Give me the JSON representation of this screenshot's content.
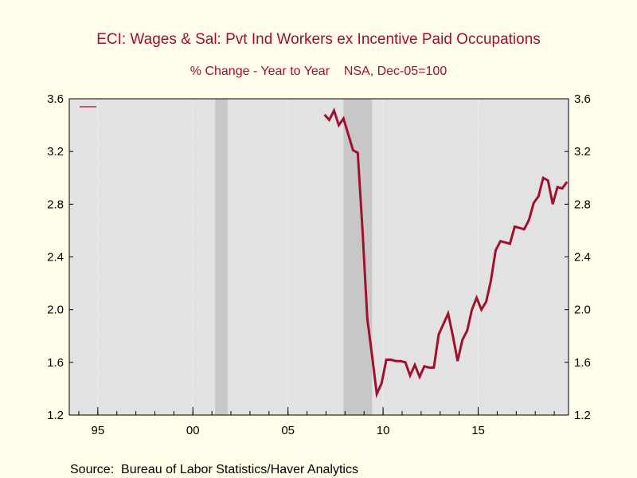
{
  "chart_data": {
    "type": "line",
    "title": "ECI: Wages & Sal: Pvt Ind Workers ex Incentive Paid Occupations",
    "subtitle": "% Change - Year to Year    NSA, Dec-05=100",
    "source": "Source:  Bureau of Labor Statistics/Haver Analytics",
    "xlabel": "",
    "ylabel": "",
    "x_ticks": [
      1995,
      2000,
      2005,
      2010,
      2015
    ],
    "x_tick_labels": [
      "95",
      "00",
      "05",
      "10",
      "15"
    ],
    "xlim": [
      1993.5,
      2019.75
    ],
    "ylim": [
      1.2,
      3.6
    ],
    "y_ticks": [
      1.2,
      1.6,
      2.0,
      2.4,
      2.8,
      3.2,
      3.6
    ],
    "y_tick_labels": [
      "1.2",
      "1.6",
      "2.0",
      "2.4",
      "2.8",
      "3.2",
      "3.6"
    ],
    "grid": "vertical",
    "recessions": [
      [
        2001.17,
        2001.83
      ],
      [
        2007.92,
        2009.42
      ]
    ],
    "colors": {
      "line": "#a0102e",
      "plot_bg": "#e2e2e2",
      "recession": "#c7c7c7",
      "title": "#a0102e",
      "page_bg": "#fffdea"
    },
    "series": [
      {
        "name": "",
        "x": [
          2006.92,
          2007.17,
          2007.42,
          2007.67,
          2007.92,
          2008.17,
          2008.42,
          2008.67,
          2008.92,
          2009.17,
          2009.42,
          2009.67,
          2009.92,
          2010.17,
          2010.42,
          2010.67,
          2010.92,
          2011.17,
          2011.42,
          2011.67,
          2011.92,
          2012.17,
          2012.42,
          2012.67,
          2012.92,
          2013.17,
          2013.42,
          2013.67,
          2013.92,
          2014.17,
          2014.42,
          2014.67,
          2014.92,
          2015.17,
          2015.42,
          2015.67,
          2015.92,
          2016.17,
          2016.42,
          2016.67,
          2016.92,
          2017.17,
          2017.42,
          2017.67,
          2017.92,
          2018.17,
          2018.42,
          2018.67,
          2018.92,
          2019.17,
          2019.42,
          2019.67
        ],
        "values": [
          3.48,
          3.44,
          3.51,
          3.4,
          3.45,
          3.33,
          3.21,
          3.19,
          2.6,
          1.93,
          1.65,
          1.36,
          1.44,
          1.62,
          1.62,
          1.61,
          1.61,
          1.6,
          1.5,
          1.58,
          1.49,
          1.57,
          1.56,
          1.56,
          1.81,
          1.89,
          1.97,
          1.8,
          1.61,
          1.77,
          1.84,
          2.0,
          2.09,
          2.0,
          2.06,
          2.22,
          2.45,
          2.52,
          2.51,
          2.5,
          2.63,
          2.62,
          2.61,
          2.68,
          2.81,
          2.86,
          3.0,
          2.98,
          2.8,
          2.93,
          2.92,
          2.97
        ]
      }
    ]
  }
}
